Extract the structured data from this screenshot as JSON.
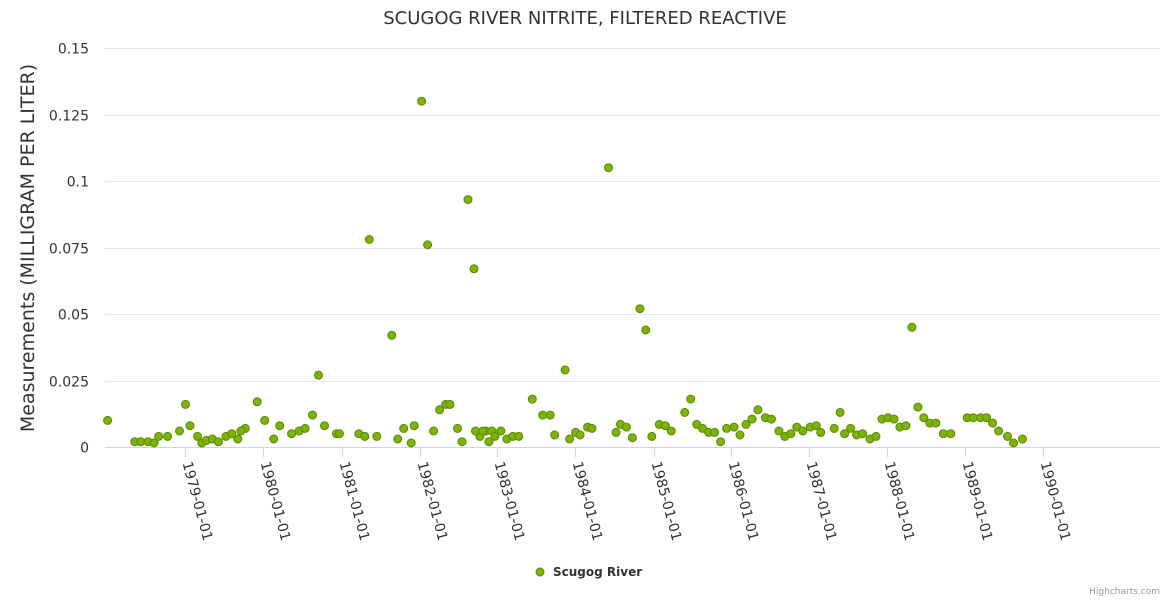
{
  "chart_data": {
    "type": "scatter",
    "title": "SCUGOG RIVER NITRITE, FILTERED REACTIVE",
    "ylabel": "Measurements (MILLIGRAM PER LITER)",
    "xlabel": "",
    "ylim": [
      0,
      0.15
    ],
    "y_ticks": [
      "0",
      "0.025",
      "0.05",
      "0.075",
      "0.1",
      "0.125",
      "0.15"
    ],
    "x_ticks": [
      "1979-01-01",
      "1980-01-01",
      "1981-01-01",
      "1982-01-01",
      "1983-01-01",
      "1984-01-01",
      "1985-01-01",
      "1986-01-01",
      "1987-01-01",
      "1988-01-01",
      "1989-01-01",
      "1990-01-01"
    ],
    "xlim": [
      "1977-12-20",
      "1991-07-01"
    ],
    "grid": true,
    "legend_position": "bottom-center",
    "series": [
      {
        "name": "Scugog River",
        "color": "#7cb305",
        "points": [
          [
            "1978-01-01",
            0.01
          ],
          [
            "1978-05-08",
            0.002
          ],
          [
            "1978-06-05",
            0.002
          ],
          [
            "1978-07-10",
            0.002
          ],
          [
            "1978-08-07",
            0.0015
          ],
          [
            "1978-08-28",
            0.004
          ],
          [
            "1978-10-09",
            0.004
          ],
          [
            "1978-12-04",
            0.006
          ],
          [
            "1979-01-01",
            0.016
          ],
          [
            "1979-01-22",
            0.008
          ],
          [
            "1979-02-26",
            0.004
          ],
          [
            "1979-03-19",
            0.0015
          ],
          [
            "1979-04-09",
            0.0025
          ],
          [
            "1979-05-07",
            0.003
          ],
          [
            "1979-06-04",
            0.002
          ],
          [
            "1979-07-09",
            0.004
          ],
          [
            "1979-08-06",
            0.005
          ],
          [
            "1979-09-03",
            0.003
          ],
          [
            "1979-10-08",
            0.007
          ],
          [
            "1979-09-17",
            0.006
          ],
          [
            "1979-12-03",
            0.017
          ],
          [
            "1980-01-07",
            0.01
          ],
          [
            "1980-02-18",
            0.003
          ],
          [
            "1980-03-17",
            0.008
          ],
          [
            "1980-05-12",
            0.005
          ],
          [
            "1980-06-16",
            0.006
          ],
          [
            "1980-07-14",
            0.007
          ],
          [
            "1980-08-18",
            0.012
          ],
          [
            "1980-09-15",
            0.027
          ],
          [
            "1980-10-13",
            0.008
          ],
          [
            "1980-12-08",
            0.005
          ],
          [
            "1980-12-22",
            0.005
          ],
          [
            "1981-03-23",
            0.005
          ],
          [
            "1981-04-20",
            0.004
          ],
          [
            "1981-05-11",
            0.078
          ],
          [
            "1981-06-15",
            0.004
          ],
          [
            "1981-08-24",
            0.042
          ],
          [
            "1981-09-21",
            0.003
          ],
          [
            "1981-10-19",
            0.007
          ],
          [
            "1981-11-23",
            0.0015
          ],
          [
            "1981-12-07",
            0.008
          ],
          [
            "1982-01-11",
            0.13
          ],
          [
            "1982-02-08",
            0.076
          ],
          [
            "1982-03-08",
            0.006
          ],
          [
            "1982-04-05",
            0.014
          ],
          [
            "1982-05-03",
            0.016
          ],
          [
            "1982-05-24",
            0.016
          ],
          [
            "1982-06-28",
            0.007
          ],
          [
            "1982-07-19",
            0.002
          ],
          [
            "1982-08-16",
            0.093
          ],
          [
            "1982-09-13",
            0.067
          ],
          [
            "1982-10-11",
            0.004
          ],
          [
            "1982-11-08",
            0.006
          ],
          [
            "1982-12-06",
            0.006
          ],
          [
            "1982-09-20",
            0.006
          ],
          [
            "1982-10-25",
            0.006
          ],
          [
            "1982-11-22",
            0.002
          ],
          [
            "1982-12-20",
            0.004
          ],
          [
            "1983-01-17",
            0.006
          ],
          [
            "1983-02-14",
            0.003
          ],
          [
            "1983-03-14",
            0.004
          ],
          [
            "1983-04-11",
            0.004
          ],
          [
            "1983-06-13",
            0.018
          ],
          [
            "1983-08-01",
            0.012
          ],
          [
            "1983-09-05",
            0.012
          ],
          [
            "1983-09-26",
            0.0045
          ],
          [
            "1983-11-14",
            0.029
          ],
          [
            "1983-12-05",
            0.003
          ],
          [
            "1984-01-02",
            0.0055
          ],
          [
            "1984-01-23",
            0.0045
          ],
          [
            "1984-02-27",
            0.0075
          ],
          [
            "1984-03-19",
            0.007
          ],
          [
            "1984-06-04",
            0.105
          ],
          [
            "1984-07-09",
            0.0055
          ],
          [
            "1984-07-30",
            0.0085
          ],
          [
            "1984-08-27",
            0.0075
          ],
          [
            "1984-09-24",
            0.0035
          ],
          [
            "1984-10-29",
            0.052
          ],
          [
            "1984-11-26",
            0.044
          ],
          [
            "1984-12-24",
            0.004
          ],
          [
            "1985-01-28",
            0.0085
          ],
          [
            "1985-02-25",
            0.008
          ],
          [
            "1985-03-25",
            0.006
          ],
          [
            "1985-05-27",
            0.013
          ],
          [
            "1985-06-24",
            0.018
          ],
          [
            "1985-07-22",
            0.0085
          ],
          [
            "1985-08-19",
            0.007
          ],
          [
            "1985-09-16",
            0.0055
          ],
          [
            "1985-10-14",
            0.0055
          ],
          [
            "1985-11-11",
            0.002
          ],
          [
            "1985-12-09",
            0.007
          ],
          [
            "1986-01-13",
            0.0075
          ],
          [
            "1986-02-10",
            0.0045
          ],
          [
            "1986-03-10",
            0.0085
          ],
          [
            "1986-04-07",
            0.0105
          ],
          [
            "1986-05-05",
            0.014
          ],
          [
            "1986-06-09",
            0.011
          ],
          [
            "1986-07-07",
            0.0105
          ],
          [
            "1986-08-11",
            0.006
          ],
          [
            "1986-09-08",
            0.004
          ],
          [
            "1986-10-06",
            0.005
          ],
          [
            "1986-11-03",
            0.0075
          ],
          [
            "1986-12-01",
            0.006
          ],
          [
            "1987-01-05",
            0.0075
          ],
          [
            "1987-02-02",
            0.008
          ],
          [
            "1987-02-23",
            0.0055
          ],
          [
            "1987-04-27",
            0.007
          ],
          [
            "1987-05-25",
            0.013
          ],
          [
            "1987-06-15",
            0.005
          ],
          [
            "1987-07-13",
            0.007
          ],
          [
            "1987-08-10",
            0.0045
          ],
          [
            "1987-09-07",
            0.005
          ],
          [
            "1987-10-12",
            0.003
          ],
          [
            "1987-11-09",
            0.004
          ],
          [
            "1987-12-07",
            0.0105
          ],
          [
            "1988-01-04",
            0.011
          ],
          [
            "1988-02-01",
            0.0105
          ],
          [
            "1988-02-29",
            0.0075
          ],
          [
            "1988-03-28",
            0.008
          ],
          [
            "1988-04-25",
            0.045
          ],
          [
            "1988-05-23",
            0.015
          ],
          [
            "1988-06-20",
            0.011
          ],
          [
            "1988-07-18",
            0.009
          ],
          [
            "1988-08-15",
            0.009
          ],
          [
            "1988-09-19",
            0.005
          ],
          [
            "1988-10-24",
            0.005
          ],
          [
            "1989-01-09",
            0.011
          ],
          [
            "1989-02-06",
            0.011
          ],
          [
            "1989-03-13",
            0.011
          ],
          [
            "1989-04-10",
            0.011
          ],
          [
            "1989-05-08",
            0.009
          ],
          [
            "1989-06-05",
            0.006
          ],
          [
            "1989-07-17",
            0.004
          ],
          [
            "1989-08-14",
            0.0015
          ],
          [
            "1989-09-25",
            0.003
          ]
        ]
      }
    ]
  },
  "legend": {
    "label": "Scugog River"
  },
  "credits": "Highcharts.com"
}
